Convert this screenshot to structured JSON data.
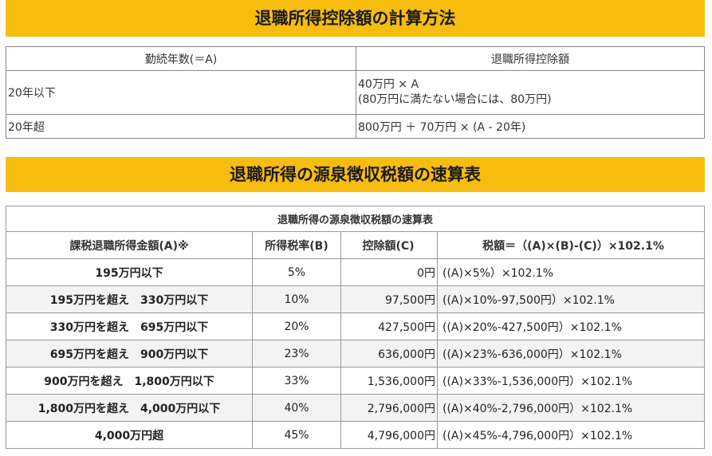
{
  "section1": {
    "title": "退職所得控除額の計算方法",
    "table": {
      "headers": [
        "勤続年数(＝A)",
        "退職所得控除額"
      ],
      "rows": [
        {
          "years": "20年以下",
          "line1": "40万円 × A",
          "line2": "(80万円に満たない場合には、80万円)"
        },
        {
          "years": "20年超",
          "line1": "800万円 ＋ 70万円 × (A - 20年)"
        }
      ]
    }
  },
  "section2": {
    "title": "退職所得の源泉徴収税額の速算表",
    "table": {
      "caption": "退職所得の源泉徴収税額の速算表",
      "headers": [
        "課税退職所得金額(A)※",
        "所得税率(B)",
        "控除額(C)",
        "税額＝（(A)×(B)-(C)）×102.1%"
      ],
      "rows": [
        {
          "amount": "195万円以下",
          "rate": "5%",
          "deduction": "0円",
          "tax": "((A)×5%）×102.1%"
        },
        {
          "amount": "195万円を超え　330万円以下",
          "rate": "10%",
          "deduction": "97,500円",
          "tax": "((A)×10%-97,500円）×102.1%"
        },
        {
          "amount": "330万円を超え　695万円以下",
          "rate": "20%",
          "deduction": "427,500円",
          "tax": "((A)×20%-427,500円）×102.1%"
        },
        {
          "amount": "695万円を超え　900万円以下",
          "rate": "23%",
          "deduction": "636,000円",
          "tax": "((A)×23%-636,000円）×102.1%"
        },
        {
          "amount": "900万円を超え　1,800万円以下",
          "rate": "33%",
          "deduction": "1,536,000円",
          "tax": "((A)×33%-1,536,000円）×102.1%"
        },
        {
          "amount": "1,800万円を超え　4,000万円以下",
          "rate": "40%",
          "deduction": "2,796,000円",
          "tax": "((A)×40%-2,796,000円）×102.1%"
        },
        {
          "amount": "4,000万円超",
          "rate": "45%",
          "deduction": "4,796,000円",
          "tax": "((A)×45%-4,796,000円）×102.1%"
        }
      ]
    }
  },
  "colors": {
    "banner": "#f7bd0e",
    "border": "#888888",
    "stripe": "#f3f3f3"
  }
}
